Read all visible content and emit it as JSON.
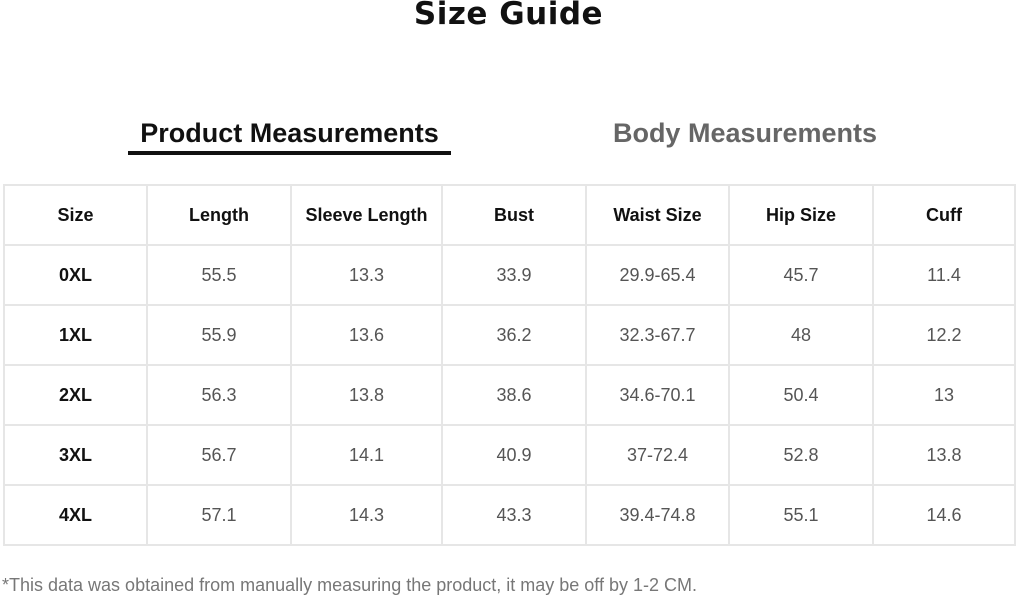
{
  "title": "Size Guide",
  "tabs": [
    {
      "label": "Product Measurements",
      "active": true
    },
    {
      "label": "Body Measurements",
      "active": false
    }
  ],
  "table": {
    "headers": [
      "Size",
      "Length",
      "Sleeve Length",
      "Bust",
      "Waist Size",
      "Hip Size",
      "Cuff"
    ],
    "rows": [
      [
        "0XL",
        "55.5",
        "13.3",
        "33.9",
        "29.9-65.4",
        "45.7",
        "11.4"
      ],
      [
        "1XL",
        "55.9",
        "13.6",
        "36.2",
        "32.3-67.7",
        "48",
        "12.2"
      ],
      [
        "2XL",
        "56.3",
        "13.8",
        "38.6",
        "34.6-70.1",
        "50.4",
        "13"
      ],
      [
        "3XL",
        "56.7",
        "14.1",
        "40.9",
        "37-72.4",
        "52.8",
        "13.8"
      ],
      [
        "4XL",
        "57.1",
        "14.3",
        "43.3",
        "39.4-74.8",
        "55.1",
        "14.6"
      ]
    ]
  },
  "note": "*This data was obtained from manually measuring the product, it may be off by 1-2 CM."
}
